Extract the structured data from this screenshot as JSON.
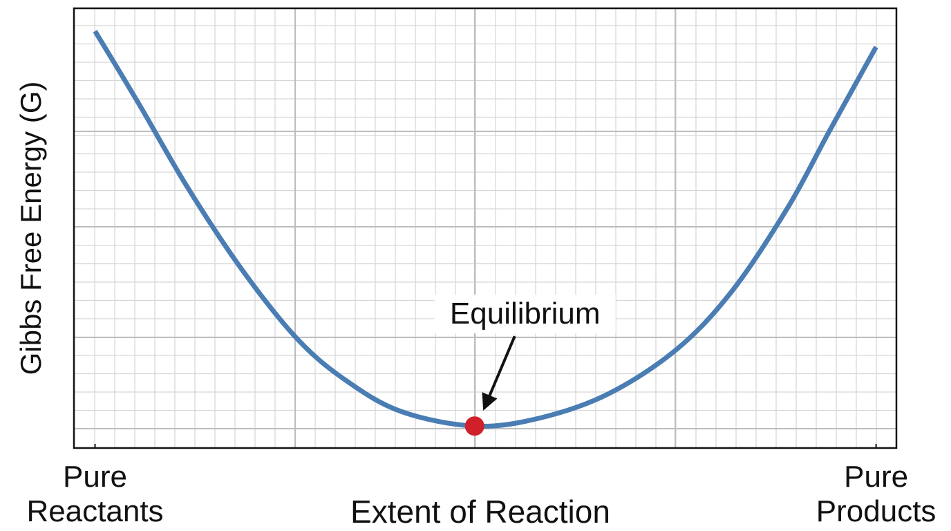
{
  "chart_data": {
    "type": "line",
    "y_label": "Gibbs Free Energy (G)",
    "x_label": "Extent of Reaction",
    "x": [
      0,
      0.056,
      0.118,
      0.188,
      0.259,
      0.321,
      0.392,
      0.486,
      0.569,
      0.657,
      0.745,
      0.816,
      0.887,
      0.94,
      1
    ],
    "series": [
      {
        "color": "#4a7db3",
        "values": [
          9.48,
          7.83,
          5.94,
          4.06,
          2.48,
          1.54,
          0.83,
          0.5,
          0.68,
          1.23,
          2.25,
          3.58,
          5.47,
          7.2,
          9.12
        ]
      }
    ],
    "xlim": [
      -0.027,
      1.026
    ],
    "ylim": [
      0,
      10
    ],
    "xticks": [
      {
        "value": 0,
        "label": "Pure Reactants"
      },
      {
        "value": 1,
        "label": "Pure Products"
      }
    ],
    "grid": true,
    "annotation": {
      "text": "Equilibrium",
      "x": 0.486,
      "y": 0.5,
      "color": "#d0202a"
    }
  }
}
